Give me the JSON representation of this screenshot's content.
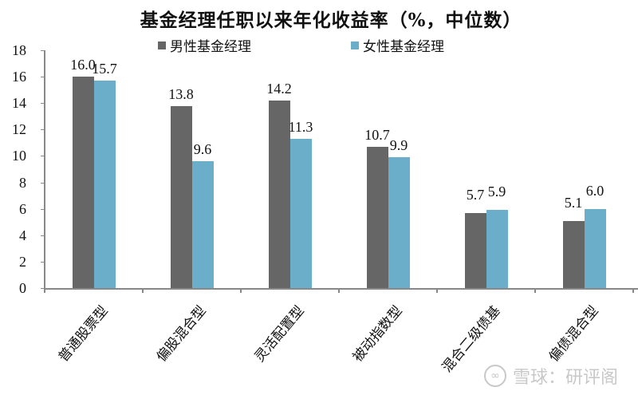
{
  "chart_data": {
    "type": "bar",
    "title": "基金经理任职以来年化收益率（%，中位数）",
    "xlabel": "",
    "ylabel": "",
    "ylim": [
      0,
      18
    ],
    "yticks": [
      0,
      2,
      4,
      6,
      8,
      10,
      12,
      14,
      16,
      18
    ],
    "grid": false,
    "legend_position": "top",
    "categories": [
      "普通股票型",
      "偏股混合型",
      "灵活配置型",
      "被动指数型",
      "混合二级债基",
      "偏债混合型"
    ],
    "series": [
      {
        "name": "男性基金经理",
        "color": "#666666",
        "values": [
          16.0,
          13.8,
          14.2,
          10.7,
          5.7,
          5.1
        ],
        "labels": [
          "16.0",
          "13.8",
          "14.2",
          "10.7",
          "5.7",
          "5.1"
        ]
      },
      {
        "name": "女性基金经理",
        "color": "#6AAECA",
        "values": [
          15.7,
          9.6,
          11.3,
          9.9,
          5.9,
          6.0
        ],
        "labels": [
          "15.7",
          "9.6",
          "11.3",
          "9.9",
          "5.9",
          "6.0"
        ]
      }
    ]
  },
  "watermark": {
    "logo": "∞",
    "text": "雪球：研评阁"
  }
}
